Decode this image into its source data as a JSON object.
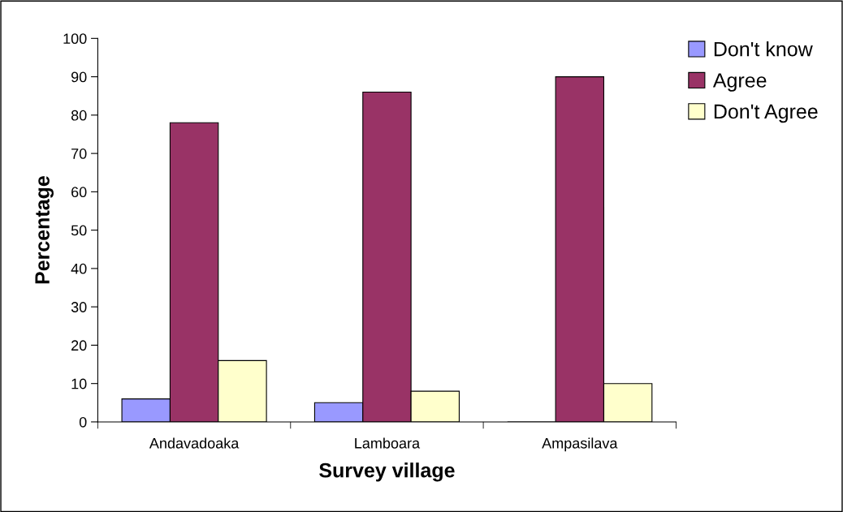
{
  "chart_data": {
    "type": "bar",
    "xlabel": "Survey village",
    "ylabel": "Percentage",
    "categories": [
      "Andavadoaka",
      "Lamboara",
      "Ampasilava"
    ],
    "series": [
      {
        "name": "Don't know",
        "color": "#9999ff",
        "values": [
          6,
          5,
          0
        ]
      },
      {
        "name": "Agree",
        "color": "#993366",
        "values": [
          78,
          86,
          90
        ]
      },
      {
        "name": "Don't Agree",
        "color": "#ffffcc",
        "values": [
          16,
          8,
          10
        ]
      }
    ],
    "ylim": [
      0,
      100
    ],
    "yticks": [
      0,
      10,
      20,
      30,
      40,
      50,
      60,
      70,
      80,
      90,
      100
    ],
    "grid": false,
    "legend": "top right"
  }
}
